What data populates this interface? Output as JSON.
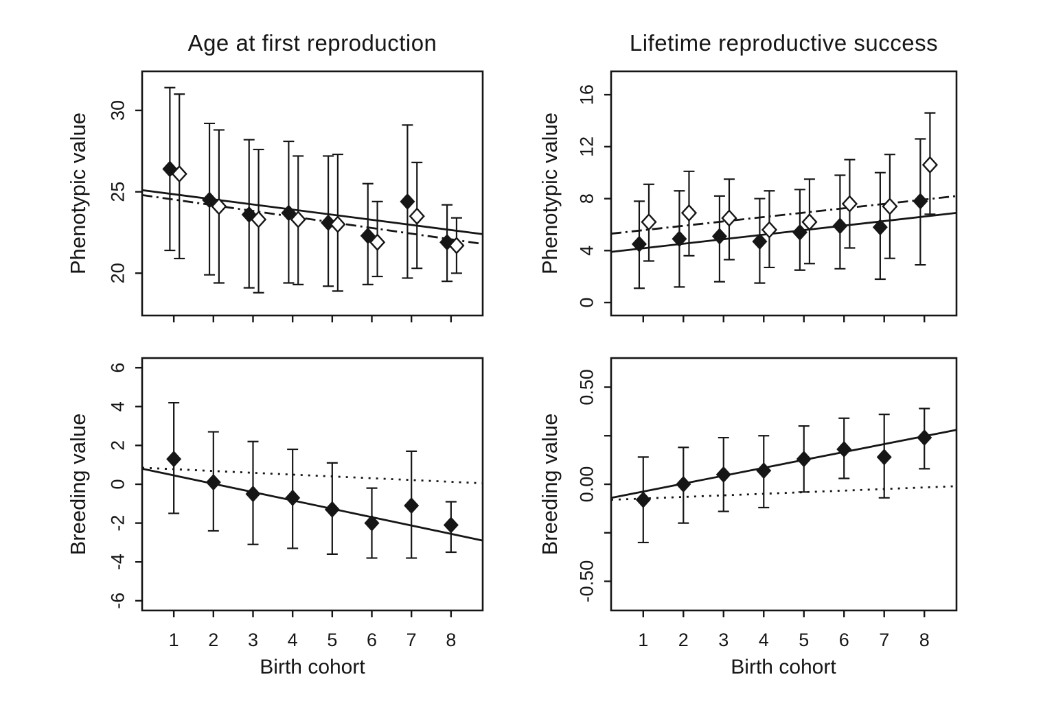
{
  "figure": {
    "background_color": "#ffffff",
    "ink_color": "#161616",
    "column_titles": [
      "Age at first reproduction",
      "Lifetime reproductive success"
    ],
    "x_axis_label": "Birth cohort"
  },
  "chart_data": [
    {
      "id": "afr-phenotypic-value",
      "type": "scatter",
      "title": "Age at first reproduction",
      "ylabel": "Phenotypic value",
      "xlabel": "",
      "x": [
        1,
        2,
        3,
        4,
        5,
        6,
        7,
        8
      ],
      "x_tick_labels": null,
      "xlim": [
        0.2,
        8.8
      ],
      "ylim": [
        17.4,
        32.4
      ],
      "grid": false,
      "legend": "none",
      "yticks": [
        {
          "v": 20,
          "label": "20"
        },
        {
          "v": 25,
          "label": "25"
        },
        {
          "v": 30,
          "label": "30"
        }
      ],
      "series": [
        {
          "name": "filled-diamond-series",
          "marker": "filled-diamond",
          "x_offset": -0.1,
          "values": [
            26.4,
            24.5,
            23.6,
            23.7,
            23.1,
            22.3,
            24.4,
            21.9
          ],
          "ci_high": [
            31.4,
            29.2,
            28.2,
            28.1,
            27.2,
            25.5,
            29.1,
            24.2
          ],
          "ci_low": [
            21.4,
            19.9,
            19.1,
            19.4,
            19.2,
            19.3,
            19.7,
            19.5
          ]
        },
        {
          "name": "open-diamond-series",
          "marker": "open-diamond",
          "x_offset": 0.14,
          "values": [
            26.1,
            24.1,
            23.3,
            23.3,
            23.0,
            21.9,
            23.5,
            21.7
          ],
          "ci_high": [
            31.0,
            28.8,
            27.6,
            27.2,
            27.3,
            24.4,
            26.8,
            23.4
          ],
          "ci_low": [
            20.9,
            19.4,
            18.8,
            19.3,
            18.9,
            19.8,
            20.3,
            20.0
          ]
        }
      ],
      "trend_lines": [
        {
          "style": "solid",
          "x": [
            0.2,
            8.8
          ],
          "y": [
            25.1,
            22.4
          ]
        },
        {
          "style": "dash-dot",
          "x": [
            0.2,
            8.8
          ],
          "y": [
            24.8,
            21.8
          ]
        }
      ]
    },
    {
      "id": "lrs-phenotypic-value",
      "type": "scatter",
      "title": "Lifetime reproductive success",
      "ylabel": "Phenotypic value",
      "xlabel": "",
      "x": [
        1,
        2,
        3,
        4,
        5,
        6,
        7,
        8
      ],
      "x_tick_labels": null,
      "xlim": [
        0.2,
        8.8
      ],
      "ylim": [
        -1.0,
        17.8
      ],
      "grid": false,
      "legend": "none",
      "yticks": [
        {
          "v": 0,
          "label": "0"
        },
        {
          "v": 4,
          "label": "4"
        },
        {
          "v": 8,
          "label": "8"
        },
        {
          "v": 12,
          "label": "12"
        },
        {
          "v": 16,
          "label": "16"
        }
      ],
      "series": [
        {
          "name": "filled-diamond-series",
          "marker": "filled-diamond",
          "x_offset": -0.1,
          "values": [
            4.5,
            4.9,
            5.1,
            4.7,
            5.4,
            5.9,
            5.8,
            7.8
          ],
          "ci_high": [
            7.8,
            8.6,
            8.2,
            8.0,
            8.7,
            9.8,
            10.0,
            12.6
          ],
          "ci_low": [
            1.1,
            1.2,
            1.6,
            1.5,
            2.5,
            2.6,
            1.8,
            2.9
          ]
        },
        {
          "name": "open-diamond-series",
          "marker": "open-diamond",
          "x_offset": 0.14,
          "values": [
            6.2,
            6.9,
            6.5,
            5.6,
            6.2,
            7.6,
            7.4,
            10.6
          ],
          "ci_high": [
            9.1,
            10.1,
            9.5,
            8.6,
            9.5,
            11.0,
            11.4,
            14.6
          ],
          "ci_low": [
            3.2,
            3.6,
            3.3,
            2.7,
            3.0,
            4.2,
            3.4,
            6.8
          ]
        }
      ],
      "trend_lines": [
        {
          "style": "solid",
          "x": [
            0.2,
            8.8
          ],
          "y": [
            3.9,
            6.9
          ]
        },
        {
          "style": "dash-dot",
          "x": [
            0.2,
            8.8
          ],
          "y": [
            5.3,
            8.2
          ]
        }
      ]
    },
    {
      "id": "afr-breeding-value",
      "type": "scatter",
      "title": "",
      "ylabel": "Breeding value",
      "xlabel": "Birth cohort",
      "x": [
        1,
        2,
        3,
        4,
        5,
        6,
        7,
        8
      ],
      "x_tick_labels": [
        "1",
        "2",
        "3",
        "4",
        "5",
        "6",
        "7",
        "8"
      ],
      "xlim": [
        0.2,
        8.8
      ],
      "ylim": [
        -6.5,
        6.5
      ],
      "grid": false,
      "legend": "none",
      "yticks": [
        {
          "v": -6,
          "label": "-6"
        },
        {
          "v": -4,
          "label": "-4"
        },
        {
          "v": -2,
          "label": "-2"
        },
        {
          "v": 0,
          "label": "0"
        },
        {
          "v": 2,
          "label": "2"
        },
        {
          "v": 4,
          "label": "4"
        },
        {
          "v": 6,
          "label": "6"
        }
      ],
      "series": [
        {
          "name": "filled-diamond-series",
          "marker": "filled-diamond",
          "x_offset": 0,
          "values": [
            1.3,
            0.1,
            -0.5,
            -0.7,
            -1.3,
            -2.0,
            -1.1,
            -2.1
          ],
          "ci_high": [
            4.2,
            2.7,
            2.2,
            1.8,
            1.1,
            -0.2,
            1.7,
            -0.9
          ],
          "ci_low": [
            -1.5,
            -2.4,
            -3.1,
            -3.3,
            -3.6,
            -3.8,
            -3.8,
            -3.5
          ]
        }
      ],
      "trend_lines": [
        {
          "style": "solid",
          "x": [
            0.2,
            8.8
          ],
          "y": [
            0.8,
            -2.9
          ]
        },
        {
          "style": "dotted",
          "x": [
            0.2,
            8.8
          ],
          "y": [
            0.85,
            0.05
          ]
        }
      ]
    },
    {
      "id": "lrs-breeding-value",
      "type": "scatter",
      "title": "",
      "ylabel": "Breeding value",
      "xlabel": "Birth cohort",
      "x": [
        1,
        2,
        3,
        4,
        5,
        6,
        7,
        8
      ],
      "x_tick_labels": [
        "1",
        "2",
        "3",
        "4",
        "5",
        "6",
        "7",
        "8"
      ],
      "xlim": [
        0.2,
        8.8
      ],
      "ylim": [
        -0.65,
        0.65
      ],
      "grid": false,
      "legend": "none",
      "yticks": [
        {
          "v": -0.5,
          "label": "-0.50"
        },
        {
          "v": -0.25,
          "label": ""
        },
        {
          "v": 0.0,
          "label": "0.00"
        },
        {
          "v": 0.25,
          "label": ""
        },
        {
          "v": 0.5,
          "label": "0.50"
        }
      ],
      "series": [
        {
          "name": "filled-diamond-series",
          "marker": "filled-diamond",
          "x_offset": 0,
          "values": [
            -0.08,
            0.0,
            0.05,
            0.07,
            0.13,
            0.18,
            0.14,
            0.24
          ],
          "ci_high": [
            0.14,
            0.19,
            0.24,
            0.25,
            0.3,
            0.34,
            0.36,
            0.39
          ],
          "ci_low": [
            -0.3,
            -0.2,
            -0.14,
            -0.12,
            -0.04,
            0.03,
            -0.07,
            0.08
          ]
        }
      ],
      "trend_lines": [
        {
          "style": "solid",
          "x": [
            0.2,
            8.8
          ],
          "y": [
            -0.07,
            0.28
          ]
        },
        {
          "style": "dotted",
          "x": [
            0.2,
            8.8
          ],
          "y": [
            -0.08,
            -0.01
          ]
        }
      ]
    }
  ]
}
